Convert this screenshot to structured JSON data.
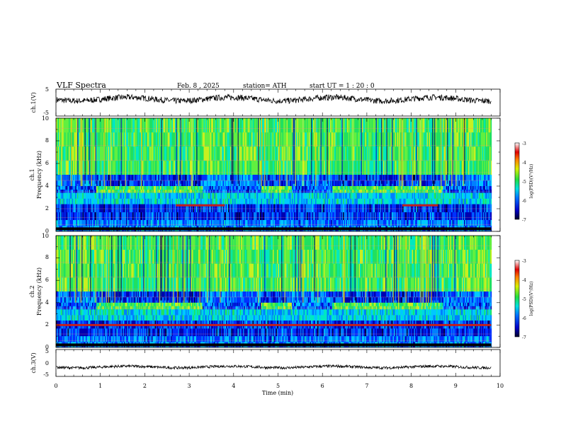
{
  "header": {
    "title": "VLF  Spectra",
    "date": "Feb. 8  , 2025",
    "station": "station= ATH",
    "start": "start  UT  =   1  : 20 : 0"
  },
  "chart_data": [
    {
      "type": "line",
      "id": "ch1",
      "ylabel": "ch.1(V)",
      "ylim": [
        -5,
        5
      ],
      "yticklabels": [
        "5",
        "-5"
      ],
      "x_range_min": [
        0,
        9.8
      ],
      "baseline_v": 1.3,
      "color": "#000000"
    },
    {
      "type": "heatmap",
      "id": "ch1-spec",
      "ylabel": "ch.1",
      "ylabel2": "Frequency  (kHz)",
      "ylim": [
        0,
        10
      ],
      "yticklabels": [
        "0",
        "2",
        "4",
        "6",
        "8",
        "10"
      ],
      "x_range_min": [
        0,
        9.8
      ],
      "colorbar": {
        "label": "log(PSD)(V²/Hz)",
        "range": [
          -7,
          -3
        ],
        "ticklabels": [
          "-3",
          "-4",
          "-5",
          "-6",
          "-7"
        ]
      },
      "quiet_segments_min": [
        [
          0.9,
          3.3
        ],
        [
          4.6,
          5.3
        ],
        [
          6.2,
          8.7
        ]
      ],
      "tone_khz": 2.3,
      "tone_segments_min": [
        [
          2.7,
          3.8
        ],
        [
          7.8,
          8.6
        ]
      ]
    },
    {
      "type": "heatmap",
      "id": "ch2-spec",
      "ylabel": "ch.2",
      "ylabel2": "Frequency  (kHz)",
      "ylim": [
        0,
        10
      ],
      "yticklabels": [
        "0",
        "2",
        "4",
        "6",
        "8",
        "10"
      ],
      "x_range_min": [
        0,
        9.8
      ],
      "colorbar": {
        "label": "log(PSD)(V²/Hz)",
        "range": [
          -7,
          -3
        ],
        "ticklabels": [
          "-3",
          "-4",
          "-5",
          "-6",
          "-7"
        ]
      },
      "quiet_segments_min": [
        [
          0.9,
          3.3
        ],
        [
          4.6,
          5.3
        ],
        [
          6.2,
          8.7
        ]
      ],
      "tone_khz": 2.0,
      "tone_segments_min": [
        [
          0,
          9.8
        ]
      ]
    },
    {
      "type": "line",
      "id": "ch3",
      "ylabel": "ch.3(V)",
      "ylim": [
        -5,
        5
      ],
      "yticklabels": [
        "5",
        "0",
        "-5"
      ],
      "x_range_min": [
        0,
        9.8
      ],
      "baseline_v": -1.5,
      "color": "#000000"
    }
  ],
  "xaxis": {
    "label": "Time  (min)",
    "range": [
      0,
      10
    ],
    "ticklabels": [
      "0",
      "1",
      "2",
      "3",
      "4",
      "5",
      "6",
      "7",
      "8",
      "9",
      "10"
    ]
  }
}
